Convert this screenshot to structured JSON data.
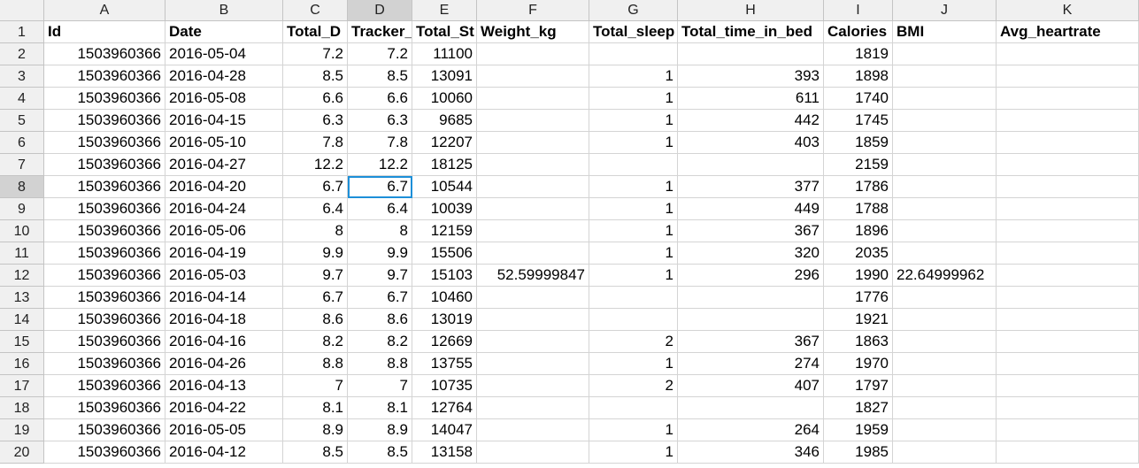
{
  "columns": [
    "A",
    "B",
    "C",
    "D",
    "E",
    "F",
    "G",
    "H",
    "I",
    "J",
    "K"
  ],
  "selected_column": "D",
  "selected_row": 8,
  "headers": [
    "Id",
    "Date",
    "Total_D",
    "Tracker_",
    "Total_St",
    "Weight_kg",
    "Total_sleep",
    "Total_time_in_bed",
    "Calories",
    "BMI",
    "Avg_heartrate"
  ],
  "rows": [
    [
      "1503960366",
      "2016-05-04",
      "7.2",
      "7.2",
      "11100",
      "",
      "",
      "",
      "1819",
      "",
      ""
    ],
    [
      "1503960366",
      "2016-04-28",
      "8.5",
      "8.5",
      "13091",
      "",
      "1",
      "393",
      "1898",
      "",
      ""
    ],
    [
      "1503960366",
      "2016-05-08",
      "6.6",
      "6.6",
      "10060",
      "",
      "1",
      "611",
      "1740",
      "",
      ""
    ],
    [
      "1503960366",
      "2016-04-15",
      "6.3",
      "6.3",
      "9685",
      "",
      "1",
      "442",
      "1745",
      "",
      ""
    ],
    [
      "1503960366",
      "2016-05-10",
      "7.8",
      "7.8",
      "12207",
      "",
      "1",
      "403",
      "1859",
      "",
      ""
    ],
    [
      "1503960366",
      "2016-04-27",
      "12.2",
      "12.2",
      "18125",
      "",
      "",
      "",
      "2159",
      "",
      ""
    ],
    [
      "1503960366",
      "2016-04-20",
      "6.7",
      "6.7",
      "10544",
      "",
      "1",
      "377",
      "1786",
      "",
      ""
    ],
    [
      "1503960366",
      "2016-04-24",
      "6.4",
      "6.4",
      "10039",
      "",
      "1",
      "449",
      "1788",
      "",
      ""
    ],
    [
      "1503960366",
      "2016-05-06",
      "8",
      "8",
      "12159",
      "",
      "1",
      "367",
      "1896",
      "",
      ""
    ],
    [
      "1503960366",
      "2016-04-19",
      "9.9",
      "9.9",
      "15506",
      "",
      "1",
      "320",
      "2035",
      "",
      ""
    ],
    [
      "1503960366",
      "2016-05-03",
      "9.7",
      "9.7",
      "15103",
      "52.59999847",
      "1",
      "296",
      "1990",
      "22.64999962",
      ""
    ],
    [
      "1503960366",
      "2016-04-14",
      "6.7",
      "6.7",
      "10460",
      "",
      "",
      "",
      "1776",
      "",
      ""
    ],
    [
      "1503960366",
      "2016-04-18",
      "8.6",
      "8.6",
      "13019",
      "",
      "",
      "",
      "1921",
      "",
      ""
    ],
    [
      "1503960366",
      "2016-04-16",
      "8.2",
      "8.2",
      "12669",
      "",
      "2",
      "367",
      "1863",
      "",
      ""
    ],
    [
      "1503960366",
      "2016-04-26",
      "8.8",
      "8.8",
      "13755",
      "",
      "1",
      "274",
      "1970",
      "",
      ""
    ],
    [
      "1503960366",
      "2016-04-13",
      "7",
      "7",
      "10735",
      "",
      "2",
      "407",
      "1797",
      "",
      ""
    ],
    [
      "1503960366",
      "2016-04-22",
      "8.1",
      "8.1",
      "12764",
      "",
      "",
      "",
      "1827",
      "",
      ""
    ],
    [
      "1503960366",
      "2016-05-05",
      "8.9",
      "8.9",
      "14047",
      "",
      "1",
      "264",
      "1959",
      "",
      ""
    ],
    [
      "1503960366",
      "2016-04-12",
      "8.5",
      "8.5",
      "13158",
      "",
      "1",
      "346",
      "1985",
      "",
      ""
    ]
  ]
}
